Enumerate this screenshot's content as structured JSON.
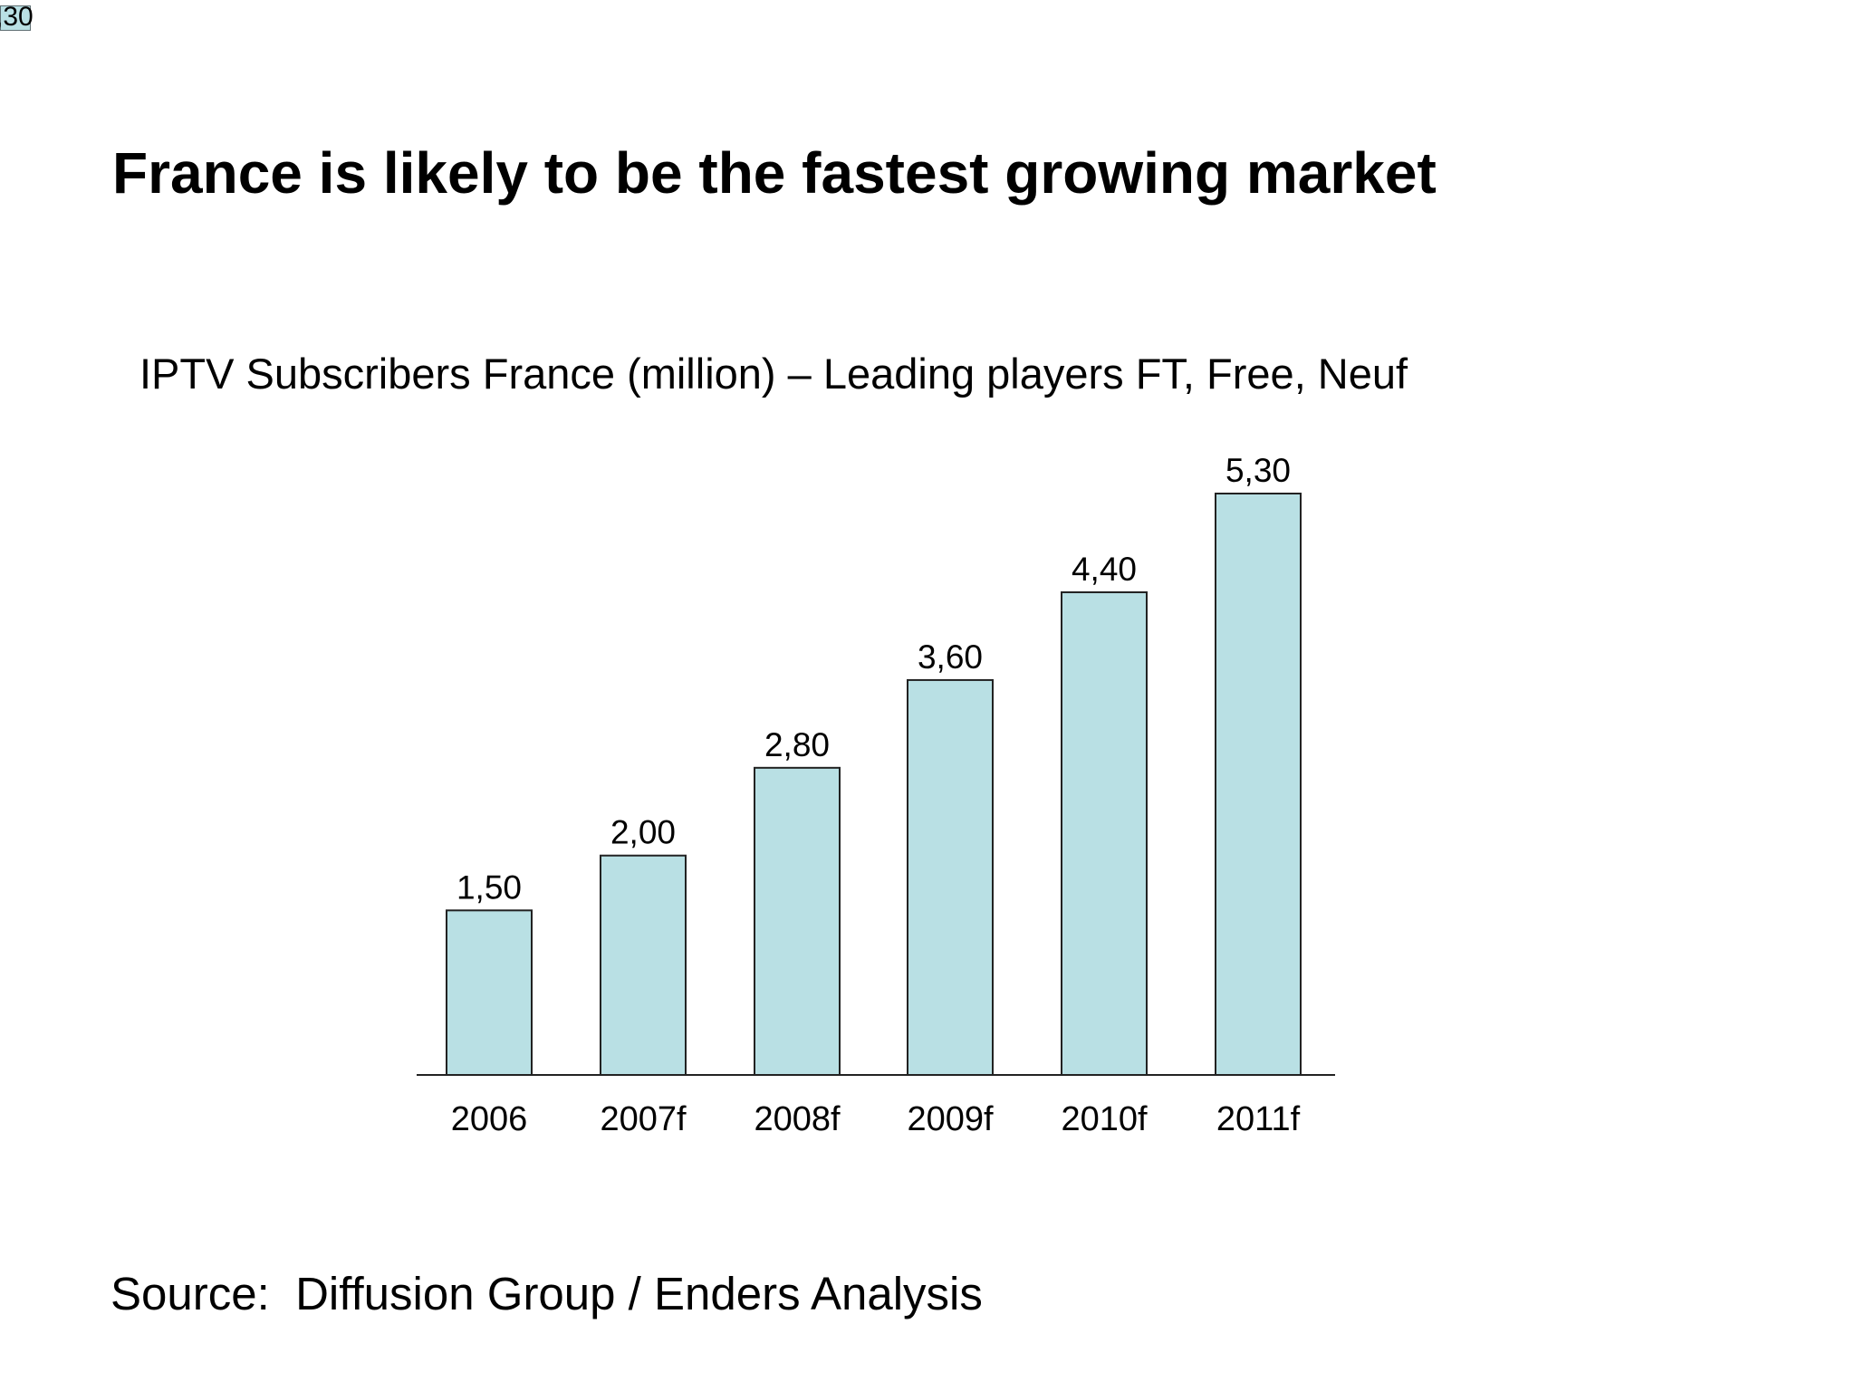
{
  "corner_fragment": ",30",
  "title": "France is likely to be the fastest growing market",
  "chart_data": {
    "type": "bar",
    "title": "IPTV Subscribers France (million) – Leading players FT, Free, Neuf",
    "categories": [
      "2006",
      "2007f",
      "2008f",
      "2009f",
      "2010f",
      "2011f"
    ],
    "values": [
      1.5,
      2.0,
      2.8,
      3.6,
      4.4,
      5.3
    ],
    "value_labels": [
      "1,50",
      "2,00",
      "2,80",
      "3,60",
      "4,40",
      "5,30"
    ],
    "xlabel": "",
    "ylabel": "",
    "ylim": [
      0,
      5.3
    ],
    "grid": false,
    "legend": "none",
    "bar_color": "#b9e0e4",
    "bar_edge_color": "#222222",
    "axis_color": "#222222"
  },
  "source": "Source:  Diffusion Group / Enders Analysis",
  "colors": {
    "background": "#ffffff",
    "text": "#000000",
    "corner_swatch": "#b9e0e4"
  }
}
